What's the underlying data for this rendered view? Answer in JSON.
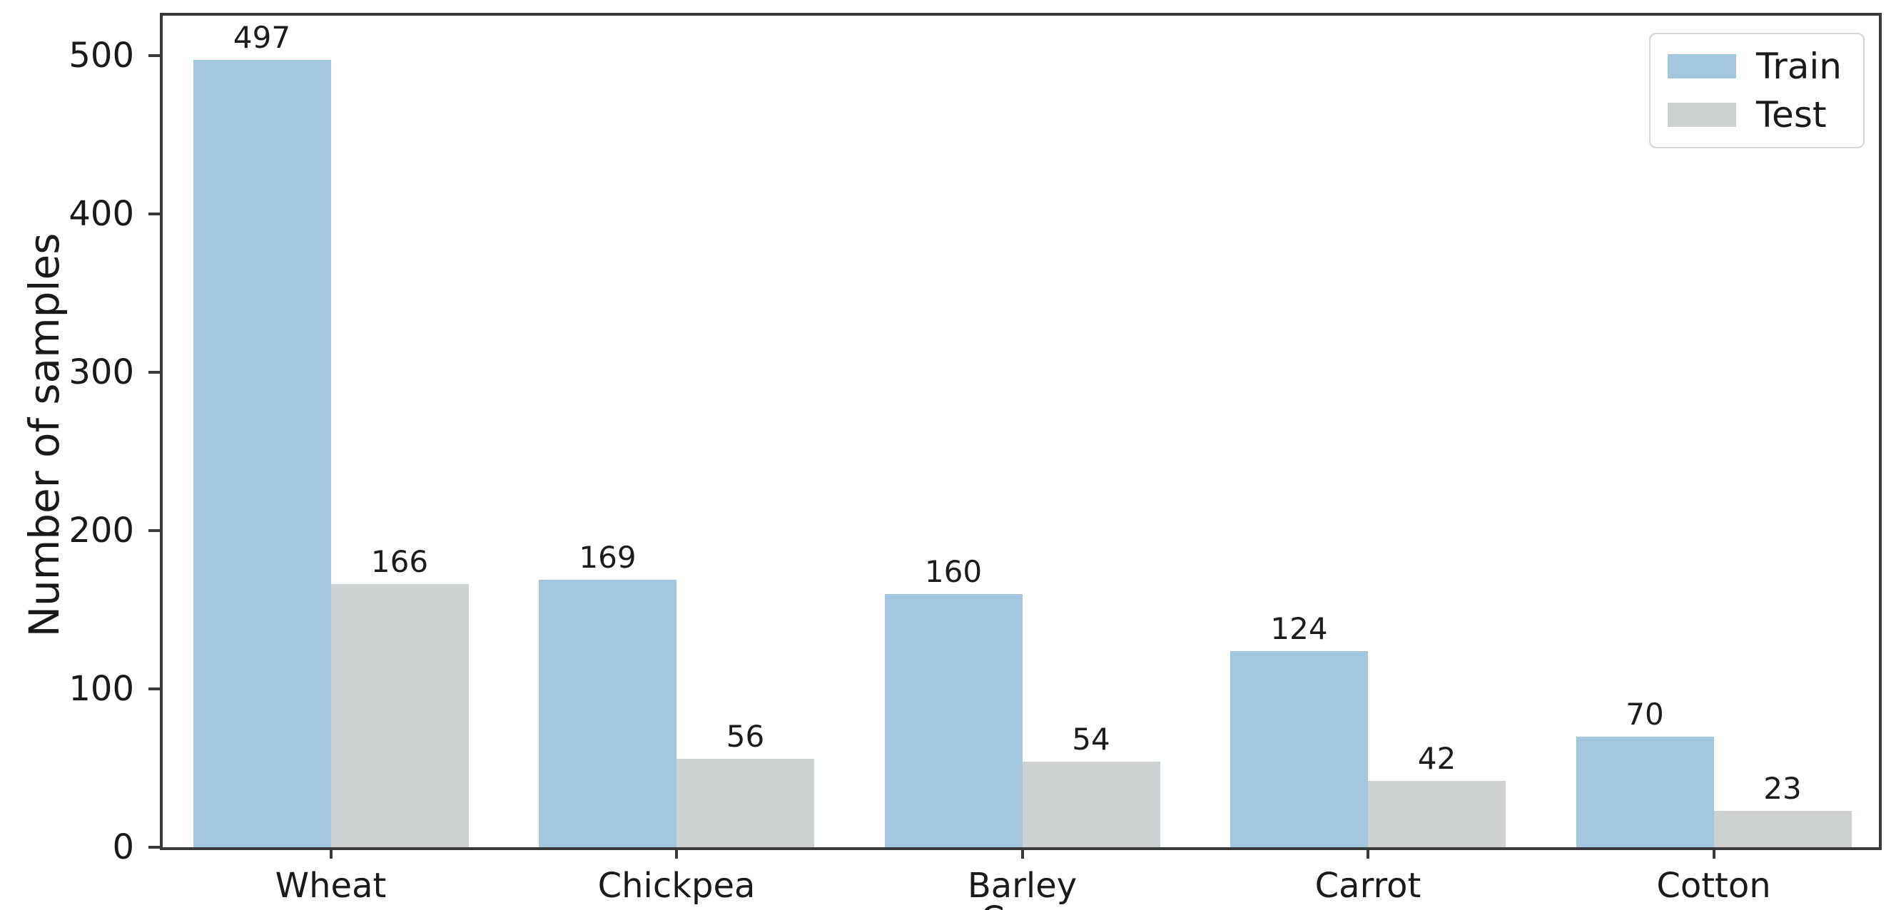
{
  "chart_data": {
    "type": "bar",
    "categories": [
      "Wheat",
      "Chickpea",
      "Barley",
      "Carrot",
      "Cotton"
    ],
    "series": [
      {
        "name": "Train",
        "color": "#a3c7e1",
        "values": [
          497,
          169,
          160,
          124,
          70
        ]
      },
      {
        "name": "Test",
        "color": "#cdd1d2",
        "values": [
          166,
          56,
          54,
          42,
          23
        ]
      }
    ],
    "title": "",
    "xlabel": "Crop",
    "ylabel": "Number of samples",
    "yticks": [
      0,
      100,
      200,
      300,
      400,
      500
    ],
    "ylim": [
      0,
      525
    ],
    "bar_value_labels": [
      [
        497,
        169,
        160,
        124,
        70
      ],
      [
        166,
        56,
        54,
        42,
        23
      ]
    ],
    "legend": {
      "position": "upper right",
      "entries": [
        "Train",
        "Test"
      ]
    },
    "grid": false,
    "spine_color": "#3a3a3a",
    "background": "#ffffff"
  }
}
